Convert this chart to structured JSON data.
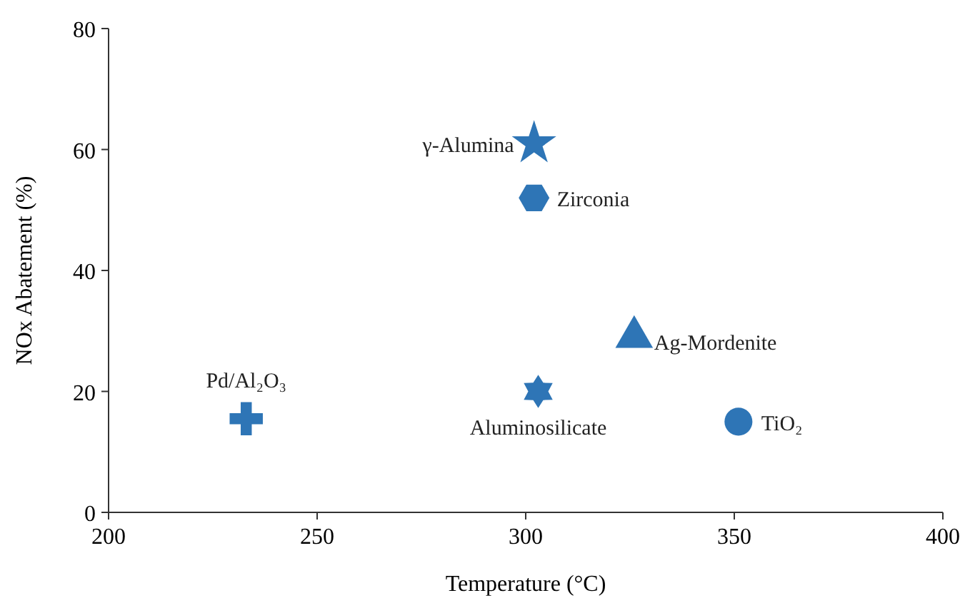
{
  "chart_data": {
    "type": "scatter",
    "xlabel": "Temperature (°C)",
    "ylabel": "NOx Abatement (%)",
    "xlim": [
      200,
      400
    ],
    "xticks": [
      200,
      250,
      300,
      350,
      400
    ],
    "ylim": [
      0,
      80
    ],
    "yticks": [
      0,
      20,
      40,
      60,
      80
    ],
    "series": [
      {
        "name": "γ-Alumina",
        "color": "#2e75b6",
        "marker": "star",
        "x": [
          302
        ],
        "values": [
          61
        ]
      },
      {
        "name": "Zirconia",
        "color": "#2e75b6",
        "x": [
          302
        ],
        "values": [
          52
        ]
      },
      {
        "name": "Ag-Mordenite",
        "color": "#2e75b6",
        "marker": "triangle",
        "x": [
          326
        ],
        "values": [
          29
        ]
      },
      {
        "name": "Aluminosilicate",
        "color": "#2e75b6",
        "x": [
          303
        ],
        "values": [
          20
        ]
      },
      {
        "name": "Pd/Al₂O₃",
        "color": "#2e75b6",
        "marker": "cross",
        "x": [
          233
        ],
        "values": [
          15.5
        ]
      },
      {
        "name": "TiO₂",
        "color": "#2e75b6",
        "marker": "circle",
        "x": [
          351
        ],
        "values": [
          15
        ]
      }
    ]
  }
}
